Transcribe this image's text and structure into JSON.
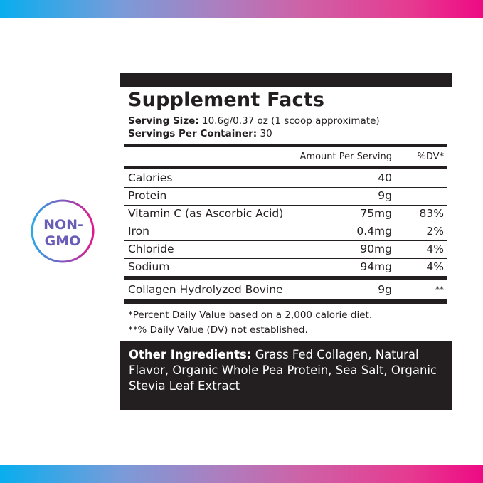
{
  "badge": {
    "line1": "NON-",
    "line2": "GMO",
    "gradient": [
      "#2ba8e6",
      "#7e5bbf",
      "#e0198a"
    ]
  },
  "facts": {
    "title": "Supplement Facts",
    "serving_size_label": "Serving Size:",
    "serving_size_value": " 10.6g/0.37 oz (1 scoop approximate)",
    "servings_label": "Servings Per Container:",
    "servings_value": " 30",
    "col_amount": "Amount Per Serving",
    "col_dv": "%DV*",
    "rows": [
      {
        "name": "Calories",
        "amount": "40",
        "dv": ""
      },
      {
        "name": "Protein",
        "amount": "9g",
        "dv": ""
      },
      {
        "name": "Vitamin C (as Ascorbic Acid)",
        "amount": "75mg",
        "dv": "83%"
      },
      {
        "name": "Iron",
        "amount": "0.4mg",
        "dv": "2%"
      },
      {
        "name": "Chloride",
        "amount": "90mg",
        "dv": "4%"
      },
      {
        "name": "Sodium",
        "amount": "94mg",
        "dv": "4%"
      }
    ],
    "blend": {
      "name": "Collagen Hydrolyzed Bovine",
      "amount": "9g",
      "dv": "**"
    },
    "footnote1": "*Percent Daily Value based on a 2,000 calorie diet.",
    "footnote2": "**% Daily Value (DV) not established.",
    "ingredients_label": "Other Ingredients:",
    "ingredients_text": " Grass Fed Collagen, Natural Flavor, Organic Whole Pea Protein, Sea Salt, Organic Stevia Leaf Extract"
  }
}
